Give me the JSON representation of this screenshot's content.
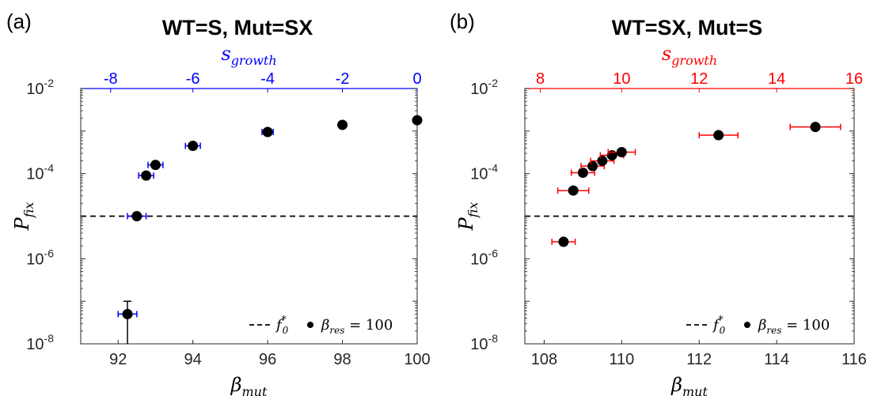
{
  "chart_data": [
    {
      "panel": "(a)",
      "type": "scatter",
      "title": "WT=S, Mut=SX",
      "xlabel": {
        "base": "β",
        "sub": "mut"
      },
      "ylabel": {
        "base": "P",
        "sub": "fix"
      },
      "top_axis_label": {
        "base": "s",
        "sub": "growth"
      },
      "top_axis_color": "#0000ff",
      "errorbar_color": "#0000ff",
      "xlim": [
        91,
        100
      ],
      "ylim": [
        1e-08,
        0.01
      ],
      "yscale": "log",
      "xticks": [
        "92",
        "94",
        "96",
        "98",
        "100"
      ],
      "xtick_values": [
        92,
        94,
        96,
        98,
        100
      ],
      "yticks": [
        {
          "base": "10",
          "exp": "-8",
          "value": 1e-08
        },
        {
          "base": "10",
          "exp": "-6",
          "value": 1e-06
        },
        {
          "base": "10",
          "exp": "-4",
          "value": 0.0001
        },
        {
          "base": "10",
          "exp": "-2",
          "value": 0.01
        }
      ],
      "top_ticks": [
        {
          "label": "-8",
          "value": 91.8
        },
        {
          "label": "-6",
          "value": 94
        },
        {
          "label": "-4",
          "value": 96
        },
        {
          "label": "-2",
          "value": 98
        },
        {
          "label": "0",
          "value": 100
        }
      ],
      "points": [
        {
          "x": 92.25,
          "y": 5e-08,
          "xerr": 0.25,
          "yerr_low": 1e-08,
          "yerr_high": 1e-07
        },
        {
          "x": 92.5,
          "y": 1e-05,
          "xerr": 0.25
        },
        {
          "x": 92.75,
          "y": 9e-05,
          "xerr": 0.2
        },
        {
          "x": 93.0,
          "y": 0.00016,
          "xerr": 0.2
        },
        {
          "x": 94.0,
          "y": 0.00045,
          "xerr": 0.2
        },
        {
          "x": 96.0,
          "y": 0.00095,
          "xerr": 0.15
        },
        {
          "x": 98.0,
          "y": 0.0014
        },
        {
          "x": 100.0,
          "y": 0.0018
        }
      ],
      "hline": 1e-05,
      "legend": {
        "position": "bottom-right",
        "entries": [
          {
            "kind": "dashed-line",
            "base": "f",
            "sub": "0",
            "sup": "*"
          },
          {
            "kind": "marker",
            "base": "β",
            "sub": "res",
            "rest": " = 100"
          }
        ]
      }
    },
    {
      "panel": "(b)",
      "type": "scatter",
      "title": "WT=SX, Mut=S",
      "xlabel": {
        "base": "β",
        "sub": "mut"
      },
      "ylabel": {
        "base": "P",
        "sub": "fix"
      },
      "top_axis_label": {
        "base": "s",
        "sub": "growth"
      },
      "top_axis_color": "#ff0000",
      "errorbar_color": "#ff0000",
      "xlim": [
        107.5,
        116
      ],
      "ylim": [
        1e-08,
        0.01
      ],
      "yscale": "log",
      "xticks": [
        "108",
        "110",
        "112",
        "114",
        "116"
      ],
      "xtick_values": [
        108,
        110,
        112,
        114,
        116
      ],
      "yticks": [
        {
          "base": "10",
          "exp": "-8",
          "value": 1e-08
        },
        {
          "base": "10",
          "exp": "-6",
          "value": 1e-06
        },
        {
          "base": "10",
          "exp": "-4",
          "value": 0.0001
        },
        {
          "base": "10",
          "exp": "-2",
          "value": 0.01
        }
      ],
      "top_ticks": [
        {
          "label": "8",
          "value": 107.9
        },
        {
          "label": "10",
          "value": 110
        },
        {
          "label": "12",
          "value": 112
        },
        {
          "label": "14",
          "value": 114
        },
        {
          "label": "16",
          "value": 116
        }
      ],
      "points": [
        {
          "x": 108.5,
          "y": 2.5e-06,
          "xerr": 0.3
        },
        {
          "x": 108.75,
          "y": 4e-05,
          "xerr": 0.4
        },
        {
          "x": 109.0,
          "y": 0.000105,
          "xerr": 0.3
        },
        {
          "x": 109.25,
          "y": 0.00015,
          "xerr": 0.3
        },
        {
          "x": 109.5,
          "y": 0.0002,
          "xerr": 0.3
        },
        {
          "x": 109.75,
          "y": 0.00027,
          "xerr": 0.3
        },
        {
          "x": 110.0,
          "y": 0.00032,
          "xerr": 0.35
        },
        {
          "x": 112.5,
          "y": 0.0008,
          "xerr": 0.5
        },
        {
          "x": 115.0,
          "y": 0.00125,
          "xerr": 0.65
        }
      ],
      "hline": 1e-05,
      "legend": {
        "position": "bottom-right",
        "entries": [
          {
            "kind": "dashed-line",
            "base": "f",
            "sub": "0",
            "sup": "*"
          },
          {
            "kind": "marker",
            "base": "β",
            "sub": "res",
            "rest": " = 100"
          }
        ]
      }
    }
  ]
}
